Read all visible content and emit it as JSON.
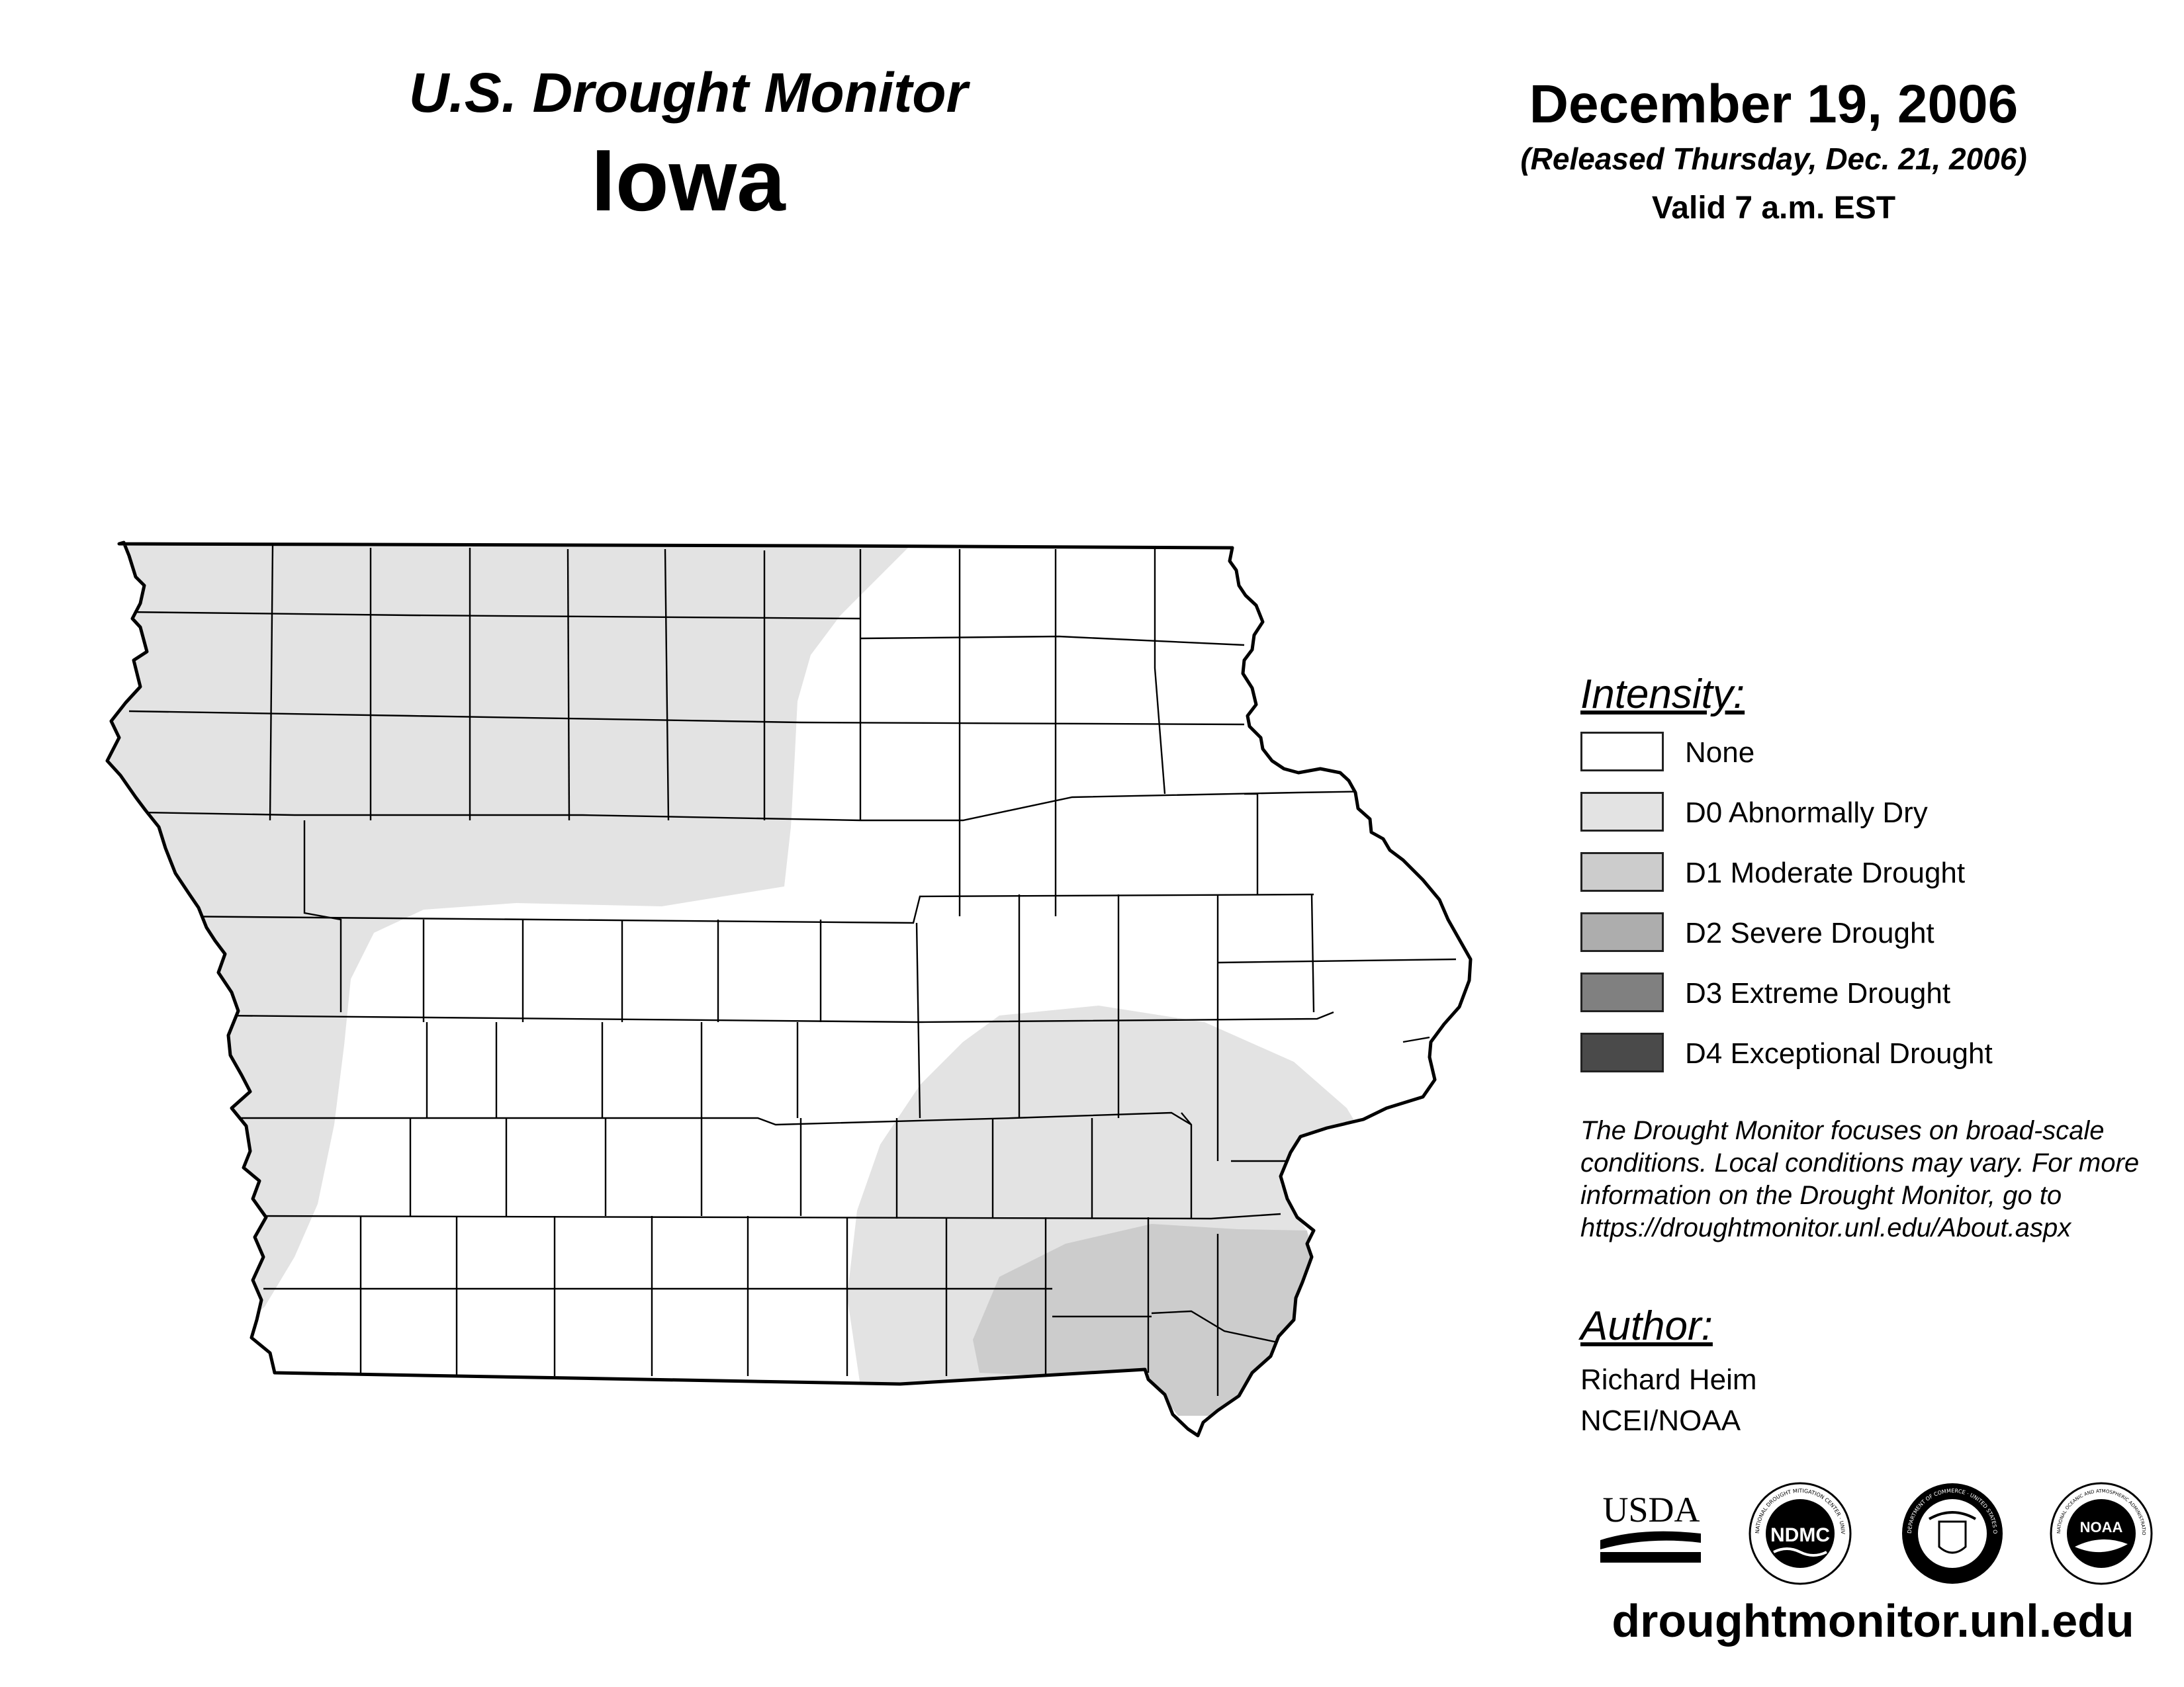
{
  "header": {
    "title": "U.S. Drought Monitor",
    "state": "Iowa",
    "date": "December 19, 2006",
    "released": "(Released Thursday, Dec. 21, 2006)",
    "valid": "Valid 7 a.m. EST"
  },
  "legend": {
    "heading": "Intensity:",
    "items": [
      {
        "label": "None",
        "color": "#ffffff"
      },
      {
        "label": "D0 Abnormally Dry",
        "color": "#e3e3e3"
      },
      {
        "label": "D1 Moderate Drought",
        "color": "#cccccc"
      },
      {
        "label": "D2 Severe Drought",
        "color": "#adadad"
      },
      {
        "label": "D3 Extreme Drought",
        "color": "#808080"
      },
      {
        "label": "D4 Exceptional Drought",
        "color": "#4a4a4a"
      }
    ]
  },
  "note": "The Drought Monitor focuses on broad-scale conditions. Local conditions may vary. For more information on the Drought Monitor, go to https://droughtmonitor.unl.edu/About.aspx",
  "author": {
    "heading": "Author:",
    "name": "Richard Heim",
    "org": "NCEI/NOAA"
  },
  "logos": {
    "usda": "USDA",
    "ndmc": "NDMC",
    "ndmc_ring": "NATIONAL DROUGHT MITIGATION CENTER · UNIVERSITY OF NEBRASKA",
    "commerce_ring": "DEPARTMENT OF COMMERCE · UNITED STATES OF AMERICA",
    "noaa": "NOAA",
    "noaa_ring": "NATIONAL OCEANIC AND ATMOSPHERIC ADMINISTRATION · U.S. DEPARTMENT OF COMMERCE"
  },
  "url": "droughtmonitor.unl.edu",
  "map": {
    "regions": [
      {
        "name": "D0 Abnormally Dry",
        "color": "#e3e3e3"
      },
      {
        "name": "D0 Abnormally Dry",
        "color": "#e3e3e3"
      },
      {
        "name": "D1 Moderate Drought",
        "color": "#cccccc"
      }
    ],
    "outline_color": "#000000"
  }
}
